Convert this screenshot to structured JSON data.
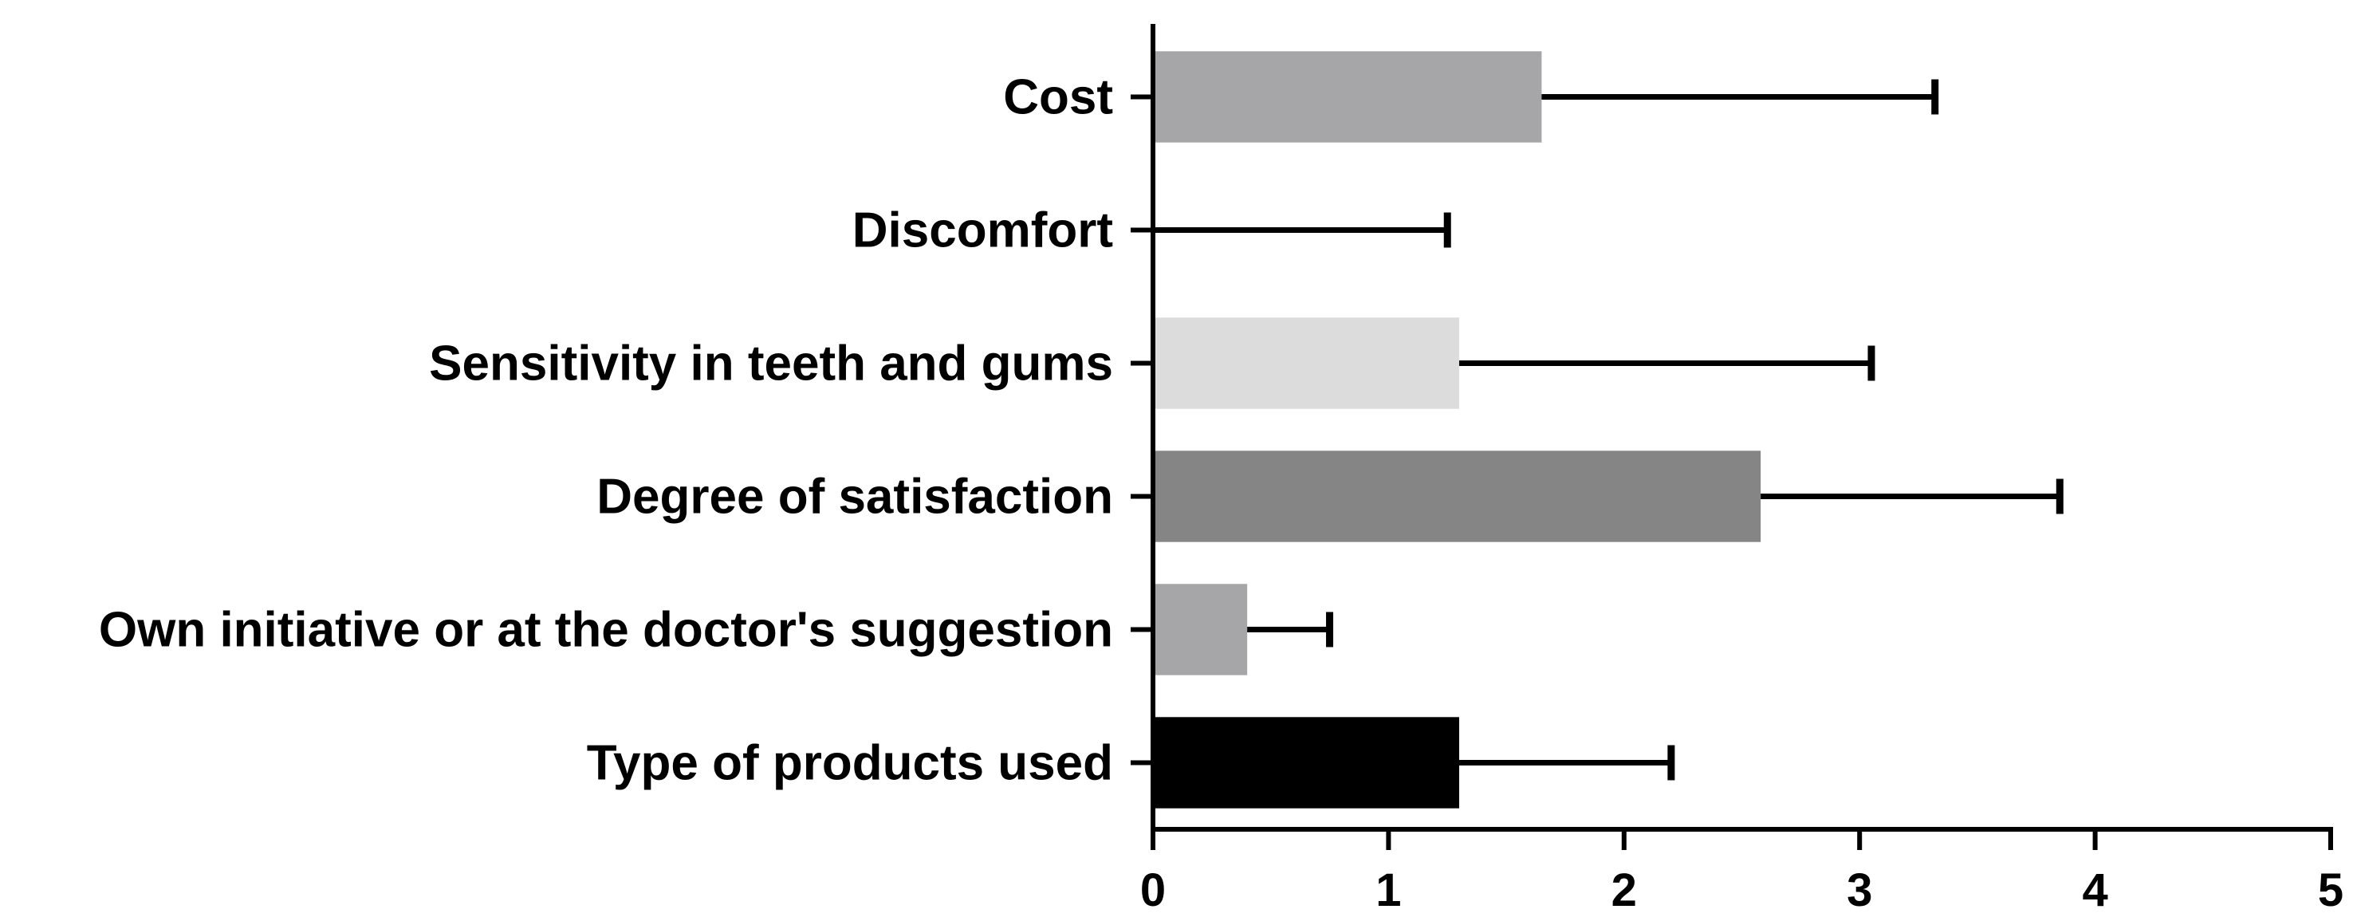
{
  "chart_data": {
    "type": "bar",
    "orientation": "horizontal",
    "categories": [
      "Cost",
      "Discomfort",
      "Sensitivity in teeth and gums",
      "Degree of satisfaction",
      "Own initiative or at the doctor's suggestion",
      "Type of products used"
    ],
    "values": [
      1.65,
      0,
      1.3,
      2.58,
      0.4,
      1.3
    ],
    "error_upper": [
      3.32,
      1.25,
      3.05,
      3.85,
      0.75,
      2.2
    ],
    "bar_colors": [
      "#a6a6a8",
      "#ffffff",
      "#dcdcdc",
      "#858585",
      "#a6a6a8",
      "#000000"
    ],
    "xlim": [
      0,
      5
    ],
    "x_ticks": [
      "0",
      "1",
      "2",
      "3",
      "4",
      "5"
    ],
    "title": "",
    "xlabel": "",
    "ylabel": "",
    "grid": false,
    "legend": "none"
  }
}
